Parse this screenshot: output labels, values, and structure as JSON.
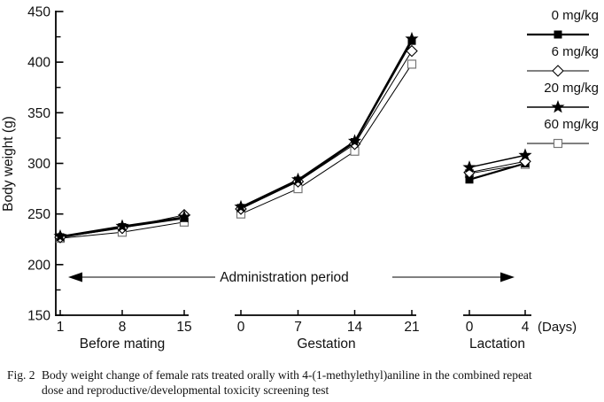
{
  "figure": {
    "caption_label": "Fig. 2",
    "caption_line1": "Body weight change of female rats treated orally with 4-(1-methylethyl)aniline in the combined repeat",
    "caption_line2": "dose and reproductive/developmental toxicity screening test"
  },
  "chart_data": {
    "type": "line",
    "title": "",
    "ylabel": "Body weight (g)",
    "days_unit_label": "(Days)",
    "annotation": "Administration period",
    "ylim": [
      150,
      450
    ],
    "y_major_step": 50,
    "y_minor_step": 25,
    "grid": false,
    "legend_position": "top-right",
    "segments": [
      {
        "label": "Before mating",
        "days": [
          "1",
          "8",
          "15"
        ]
      },
      {
        "label": "Gestation",
        "days": [
          "0",
          "7",
          "14",
          "21"
        ]
      },
      {
        "label": "Lactation",
        "days": [
          "0",
          "4"
        ]
      }
    ],
    "series": [
      {
        "name": "0 mg/kg",
        "marker": "filled-square",
        "values": [
          [
            227,
            237,
            246
          ],
          [
            256,
            283,
            321,
            421
          ],
          [
            284,
            300
          ]
        ]
      },
      {
        "name": "6 mg/kg",
        "marker": "open-diamond",
        "values": [
          [
            227,
            236,
            249
          ],
          [
            255,
            282,
            319,
            411
          ],
          [
            291,
            302
          ]
        ]
      },
      {
        "name": "20 mg/kg",
        "marker": "filled-star",
        "values": [
          [
            228,
            238,
            247
          ],
          [
            257,
            284,
            322,
            423
          ],
          [
            296,
            308
          ]
        ]
      },
      {
        "name": "60 mg/kg",
        "marker": "open-square",
        "values": [
          [
            226,
            232,
            242
          ],
          [
            250,
            275,
            312,
            398
          ],
          [
            290,
            299
          ]
        ]
      }
    ],
    "colors": {
      "line": "#000000",
      "text": "#111111",
      "open_marker_stroke": "#777777",
      "background": "#ffffff"
    }
  }
}
